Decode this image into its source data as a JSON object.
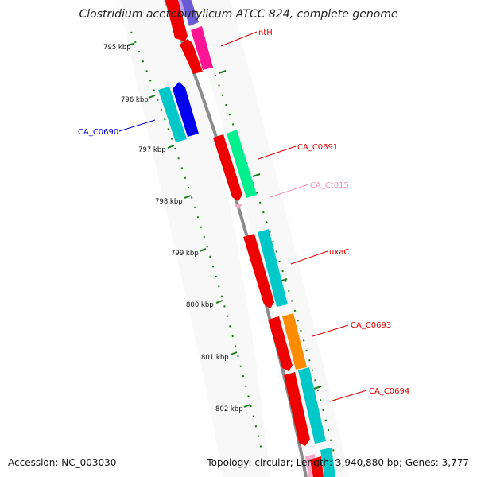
{
  "title": "Clostridium acetobutylicum ATCC 824, complete genome",
  "footer": {
    "accession": "Accession: NC_003030",
    "summary": "Topology: circular; Length: 3,940,880 bp; Genes: 3,777"
  },
  "colors": {
    "backbone": "#8c8c8c",
    "tick": "#1a7a1a",
    "cds": "#ee0000",
    "gene": "#00c8c8",
    "trna": "#f7a8c8",
    "label_red": "#dd0000",
    "label_blue": "#0000cc",
    "label_pink": "#f090b8"
  },
  "axis": {
    "unit": "kbp",
    "ticks": [
      {
        "kbp": 795,
        "label": "795 kbp"
      },
      {
        "kbp": 796,
        "label": "796 kbp"
      },
      {
        "kbp": 797,
        "label": "797 kbp"
      },
      {
        "kbp": 798,
        "label": "798 kbp"
      },
      {
        "kbp": 799,
        "label": "799 kbp"
      },
      {
        "kbp": 800,
        "label": "800 kbp"
      },
      {
        "kbp": 801,
        "label": "801 kbp"
      },
      {
        "kbp": 802,
        "label": "802 kbp"
      }
    ]
  },
  "gene_labels": [
    {
      "text": "ntH",
      "color": "#dd0000"
    },
    {
      "text": "CA_C0690",
      "color": "#0000cc"
    },
    {
      "text": "CA_C0691",
      "color": "#dd0000"
    },
    {
      "text": "CA_Ct015",
      "color": "#f090b8"
    },
    {
      "text": "uxaC",
      "color": "#dd0000"
    },
    {
      "text": "CA_C0693",
      "color": "#dd0000"
    },
    {
      "text": "CA_C0694",
      "color": "#dd0000"
    }
  ]
}
